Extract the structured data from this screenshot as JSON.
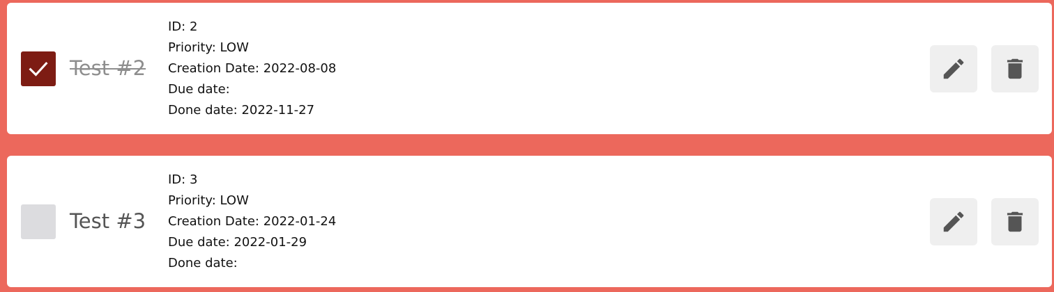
{
  "colors": {
    "background": "#ec685c",
    "card": "#ffffff",
    "checked_box": "#7d1c13",
    "unchecked_box": "#dcdcdf",
    "action_button_bg": "#efefef",
    "icon": "#555555"
  },
  "todos": [
    {
      "checked": true,
      "title": "Test #2",
      "id_line": "ID: 2",
      "priority_line": "Priority: LOW",
      "creation_line": "Creation Date: 2022-08-08",
      "due_line": "Due date:",
      "done_line": "Done date: 2022-11-27",
      "edit_icon": "pencil-icon",
      "delete_icon": "trash-icon"
    },
    {
      "checked": false,
      "title": "Test #3",
      "id_line": "ID: 3",
      "priority_line": "Priority: LOW",
      "creation_line": "Creation Date: 2022-01-24",
      "due_line": "Due date: 2022-01-29",
      "done_line": "Done date:",
      "edit_icon": "pencil-icon",
      "delete_icon": "trash-icon"
    }
  ]
}
